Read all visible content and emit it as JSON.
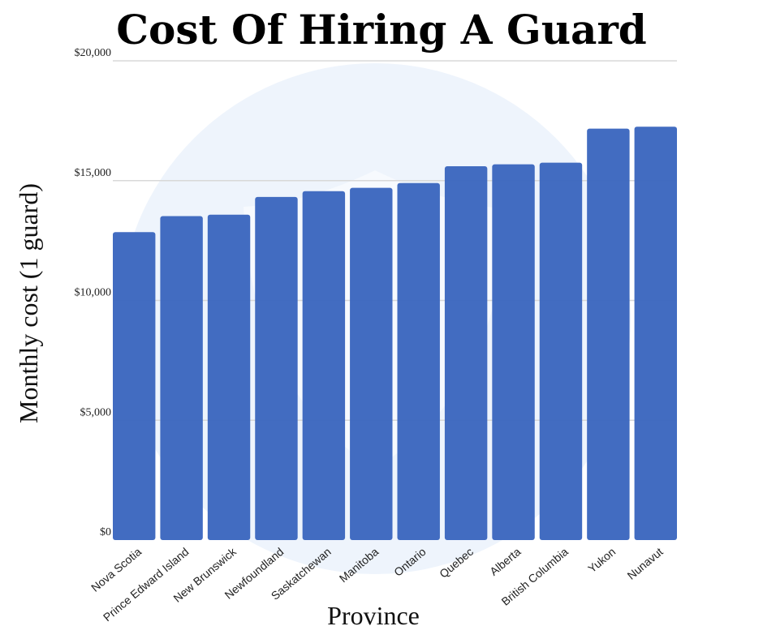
{
  "chart_data": {
    "type": "bar",
    "title": "Cost Of Hiring A Guard",
    "xlabel": "Province",
    "ylabel": "Monthly cost (1 guard)",
    "categories": [
      "Nova Scotia",
      "Prince Edward Island",
      "New Brunswick",
      "Newfoundland",
      "Saskatchewan",
      "Manitoba",
      "Ontario",
      "Quebec",
      "Alberta",
      "British Columbia",
      "Yukon",
      "Nunavut"
    ],
    "values": [
      12850,
      13520,
      13580,
      14320,
      14560,
      14700,
      14900,
      15600,
      15680,
      15750,
      17170,
      17250
    ],
    "ylim": [
      0,
      20000
    ],
    "yticks": [
      0,
      5000,
      10000,
      15000,
      20000
    ],
    "ytick_labels": [
      "$0",
      "$5,000",
      "$10,000",
      "$15,000",
      "$20,000"
    ],
    "grid": true,
    "legend": "none",
    "colors": {
      "bar": "#3a66be",
      "grid": "#d8d8d8",
      "watermark": "#eaf2fb"
    }
  }
}
